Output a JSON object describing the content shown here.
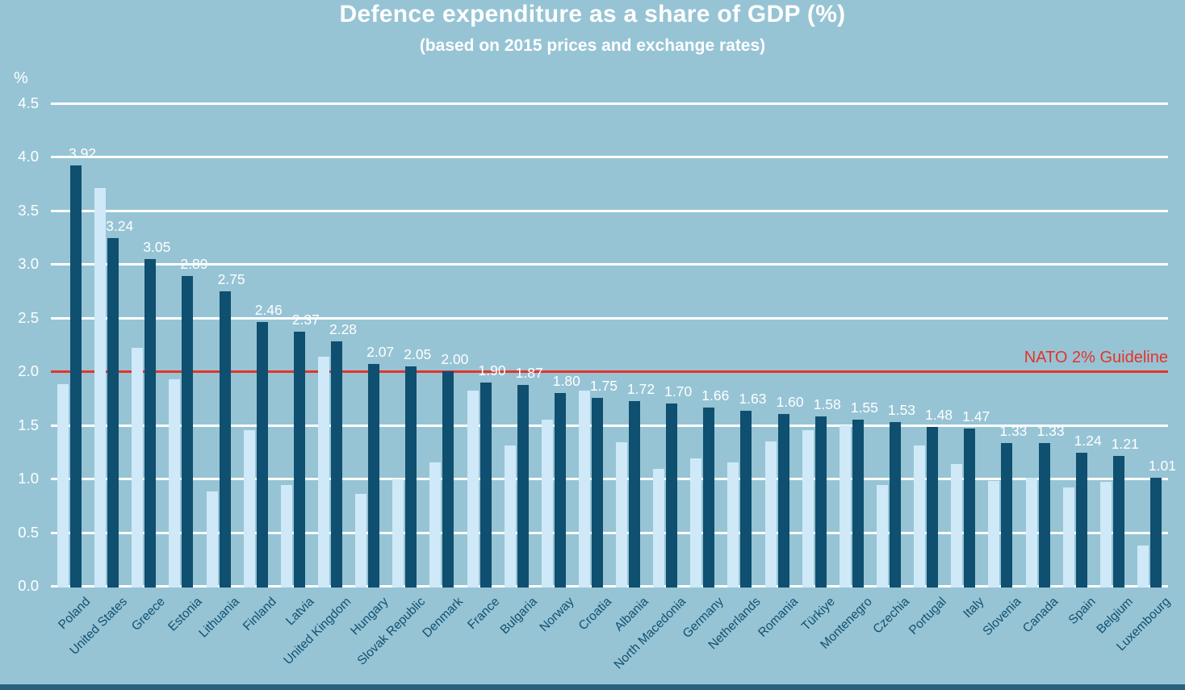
{
  "page": {
    "background_color": "#96c4d5",
    "bottom_bar_color": "#2a607f"
  },
  "chart_data": {
    "type": "bar",
    "title": "Defence expenditure as a share of GDP (%)",
    "subtitle": "(based on 2015 prices and exchange rates)",
    "ylabel": "%",
    "xlabel": "",
    "ylim": [
      0,
      4.5
    ],
    "ytick_step": 0.5,
    "grid": "horizontal white gridlines every 0.5, x-labels rotated 45deg",
    "legend": "none",
    "categories": [
      "Poland",
      "United States",
      "Greece",
      "Estonia",
      "Lithuania",
      "Finland",
      "Latvia",
      "United Kingdom",
      "Hungary",
      "Slovak Republic",
      "Denmark",
      "France",
      "Bulgaria",
      "Norway",
      "Croatia",
      "Albania",
      "North Macedonia",
      "Germany",
      "Netherlands",
      "Romania",
      "Türkiye",
      "Montenegro",
      "Czechia",
      "Portugal",
      "Italy",
      "Slovenia",
      "Canada",
      "Spain",
      "Belgium",
      "Luxembourg"
    ],
    "series": [
      {
        "name": "light-blue-bars",
        "color": "#cfe9f8",
        "labels_shown": false,
        "values": [
          1.88,
          3.71,
          2.22,
          1.93,
          0.88,
          1.45,
          0.94,
          2.14,
          0.86,
          0.99,
          1.15,
          1.82,
          1.31,
          1.55,
          1.82,
          1.34,
          1.09,
          1.19,
          1.15,
          1.35,
          1.45,
          1.5,
          0.94,
          1.31,
          1.14,
          0.98,
          1.01,
          0.92,
          0.97,
          0.38
        ]
      },
      {
        "name": "dark-blue-bars",
        "color": "#0f4f6f",
        "labels_shown": true,
        "values": [
          3.92,
          3.24,
          3.05,
          2.89,
          2.75,
          2.46,
          2.37,
          2.28,
          2.07,
          2.05,
          2.0,
          1.9,
          1.87,
          1.8,
          1.75,
          1.72,
          1.7,
          1.66,
          1.63,
          1.6,
          1.58,
          1.55,
          1.53,
          1.48,
          1.47,
          1.33,
          1.33,
          1.24,
          1.21,
          1.01
        ]
      }
    ],
    "value_label_color": "#ffffff",
    "axis_text_color": "#ffffff",
    "category_label_color": "#12506f",
    "guideline": {
      "value": 2.0,
      "label": "NATO 2% Guideline",
      "color": "#e63329"
    }
  }
}
